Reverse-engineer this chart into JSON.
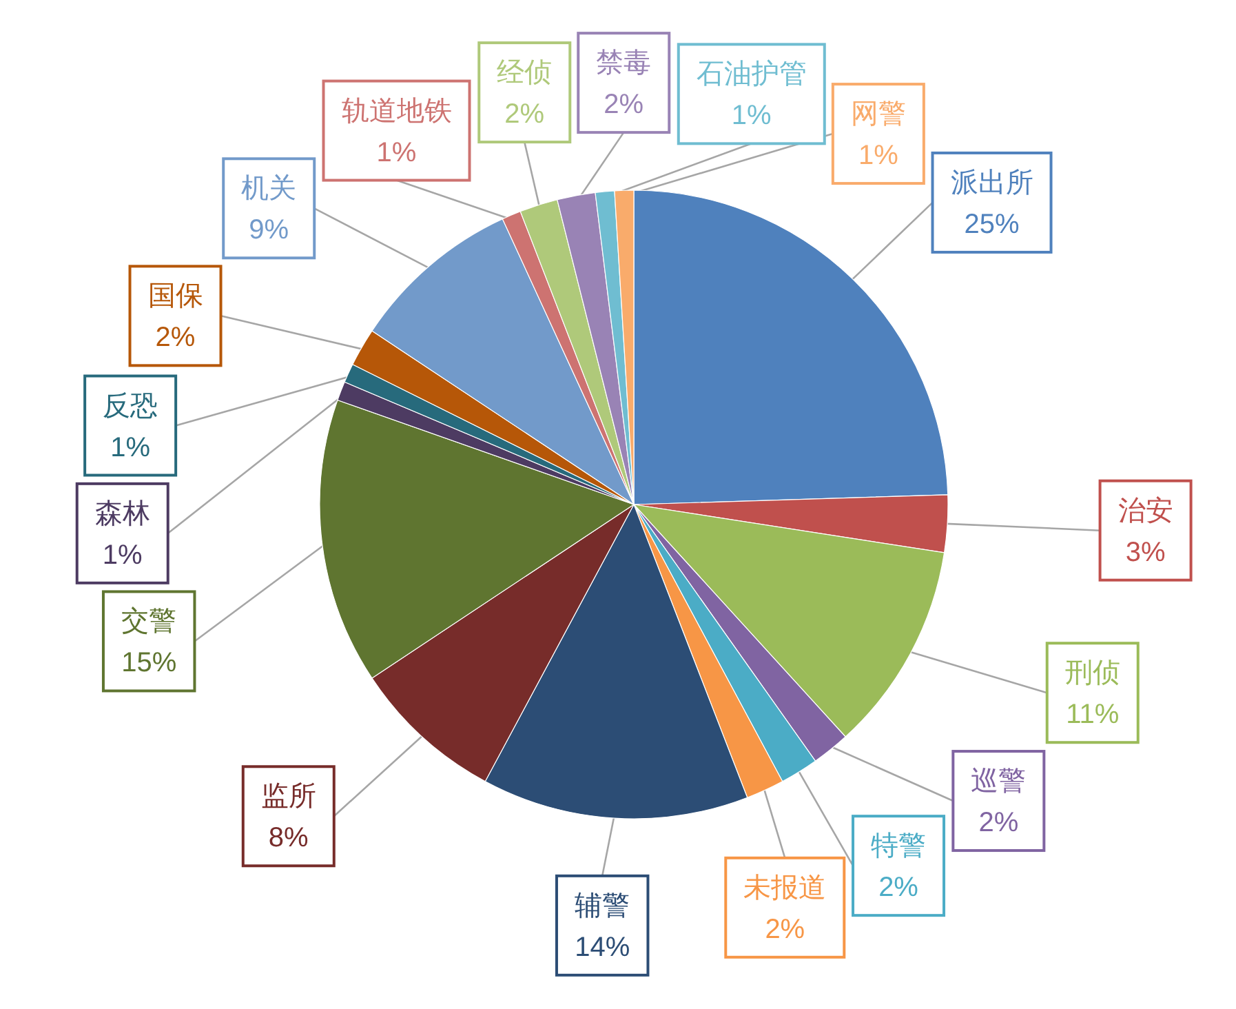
{
  "chart_data": {
    "type": "pie",
    "categories": [
      "派出所",
      "治安",
      "刑侦",
      "巡警",
      "特警",
      "未报道",
      "辅警",
      "监所",
      "交警",
      "森林",
      "反恐",
      "国保",
      "机关",
      "轨道地铁",
      "经侦",
      "禁毒",
      "石油护管",
      "网警"
    ],
    "values": [
      25,
      3,
      11,
      2,
      2,
      2,
      14,
      8,
      15,
      1,
      1,
      2,
      9,
      1,
      2,
      2,
      1,
      1
    ],
    "value_labels": [
      "25%",
      "3%",
      "11%",
      "2%",
      "2%",
      "2%",
      "14%",
      "8%",
      "15%",
      "1%",
      "1%",
      "2%",
      "9%",
      "1%",
      "2%",
      "2%",
      "1%",
      "1%"
    ],
    "colors": [
      "#4f81bd",
      "#c0504d",
      "#9bbb59",
      "#8064a2",
      "#4bacc6",
      "#f79646",
      "#2c4d75",
      "#772c2a",
      "#5f7530",
      "#4d3b62",
      "#276a7c",
      "#b65708",
      "#729aca",
      "#cd7371",
      "#afc97a",
      "#9983b5",
      "#6fbdd1",
      "#f9ab6b"
    ]
  }
}
